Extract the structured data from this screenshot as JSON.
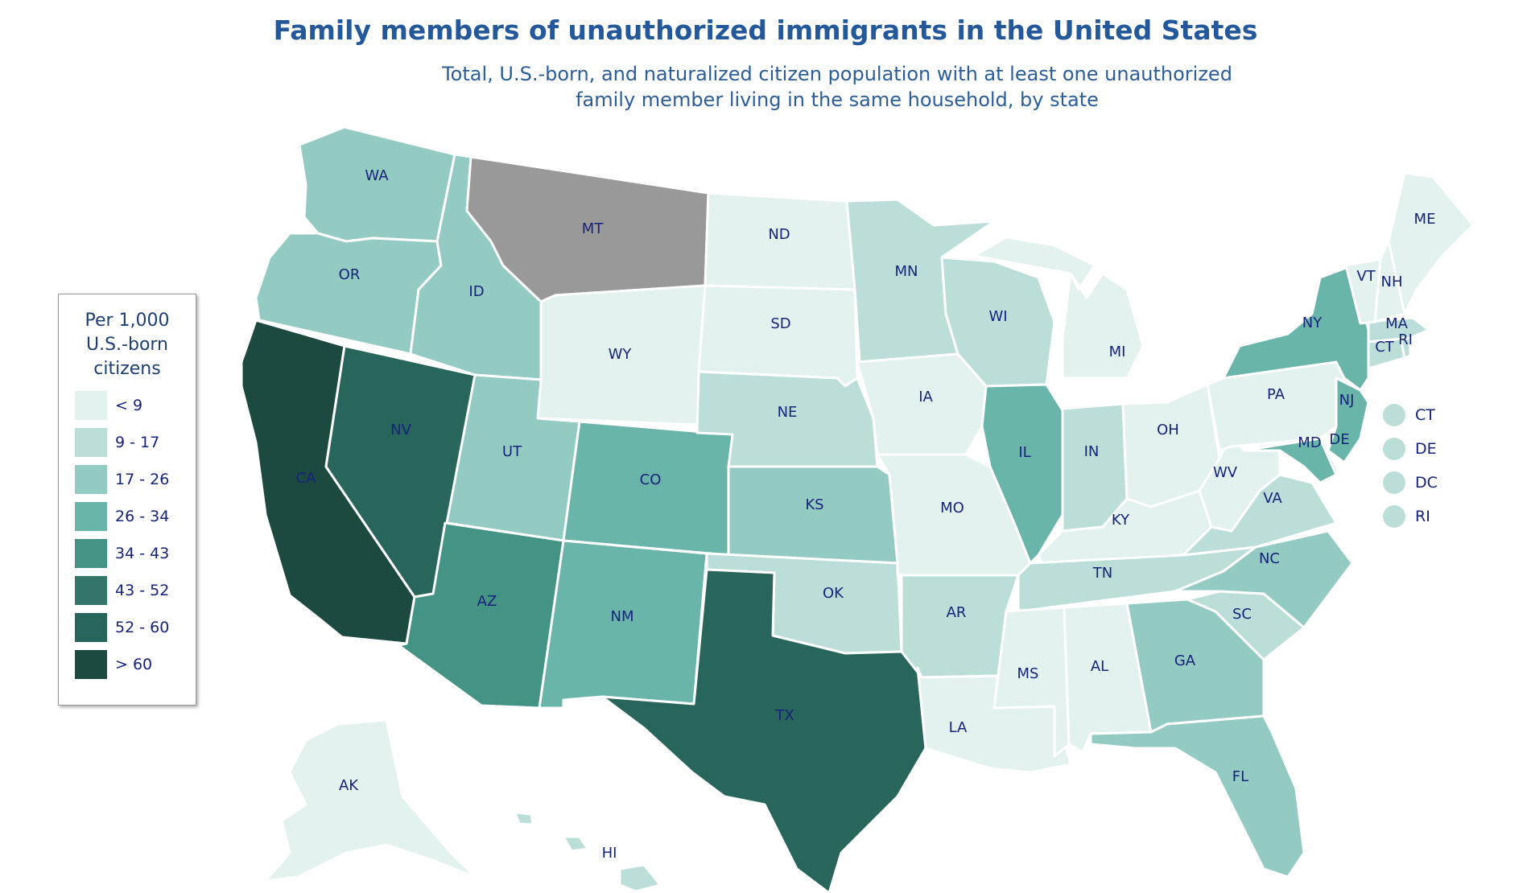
{
  "title": "Family members of unauthorized immigrants in the United States",
  "subtitle_line1": "Total, U.S.-born, and naturalized citizen population with at least one unauthorized",
  "subtitle_line2": "family member living in the same household, by state",
  "legend": {
    "title_line1": "Per 1,000",
    "title_line2": "U.S.-born",
    "title_line3": "citizens",
    "bins": [
      {
        "label": "< 9",
        "color": "#e3f1ef"
      },
      {
        "label": "9 - 17",
        "color": "#bcded9"
      },
      {
        "label": "17 - 26",
        "color": "#93cbc3"
      },
      {
        "label": "26 - 34",
        "color": "#6ab5aa"
      },
      {
        "label": "34 - 43",
        "color": "#439485"
      },
      {
        "label": "43 - 52",
        "color": "#347768"
      },
      {
        "label": "52 - 60",
        "color": "#28655a"
      },
      {
        "label": "> 60",
        "color": "#1d4a40"
      }
    ]
  },
  "no_data_color": "#999999",
  "small_states": [
    {
      "label": "CT",
      "color": "#bcded9"
    },
    {
      "label": "DE",
      "color": "#bcded9"
    },
    {
      "label": "DC",
      "color": "#bcded9"
    },
    {
      "label": "RI",
      "color": "#bcded9"
    }
  ],
  "states": [
    {
      "id": "WA",
      "label": "WA",
      "color": "#93cbc3"
    },
    {
      "id": "OR",
      "label": "OR",
      "color": "#93cbc3"
    },
    {
      "id": "CA",
      "label": "CA",
      "color": "#1d4a40"
    },
    {
      "id": "NV",
      "label": "NV",
      "color": "#28655a"
    },
    {
      "id": "ID",
      "label": "ID",
      "color": "#93cbc3"
    },
    {
      "id": "MT",
      "label": "MT",
      "color": "#999999"
    },
    {
      "id": "WY",
      "label": "WY",
      "color": "#e3f1ef"
    },
    {
      "id": "UT",
      "label": "UT",
      "color": "#93cbc3"
    },
    {
      "id": "AZ",
      "label": "AZ",
      "color": "#439485"
    },
    {
      "id": "CO",
      "label": "CO",
      "color": "#6ab5aa"
    },
    {
      "id": "NM",
      "label": "NM",
      "color": "#6ab5aa"
    },
    {
      "id": "ND",
      "label": "ND",
      "color": "#e3f1ef"
    },
    {
      "id": "SD",
      "label": "SD",
      "color": "#e3f1ef"
    },
    {
      "id": "NE",
      "label": "NE",
      "color": "#bcded9"
    },
    {
      "id": "KS",
      "label": "KS",
      "color": "#93cbc3"
    },
    {
      "id": "OK",
      "label": "OK",
      "color": "#bcded9"
    },
    {
      "id": "TX",
      "label": "TX",
      "color": "#28655a"
    },
    {
      "id": "MN",
      "label": "MN",
      "color": "#bcded9"
    },
    {
      "id": "IA",
      "label": "IA",
      "color": "#e3f1ef"
    },
    {
      "id": "MO",
      "label": "MO",
      "color": "#e3f1ef"
    },
    {
      "id": "AR",
      "label": "AR",
      "color": "#bcded9"
    },
    {
      "id": "LA",
      "label": "LA",
      "color": "#e3f1ef"
    },
    {
      "id": "WI",
      "label": "WI",
      "color": "#bcded9"
    },
    {
      "id": "IL",
      "label": "IL",
      "color": "#6ab5aa"
    },
    {
      "id": "MI",
      "label": "MI",
      "color": "#e3f1ef"
    },
    {
      "id": "IN",
      "label": "IN",
      "color": "#bcded9"
    },
    {
      "id": "OH",
      "label": "OH",
      "color": "#e3f1ef"
    },
    {
      "id": "KY",
      "label": "KY",
      "color": "#e3f1ef"
    },
    {
      "id": "TN",
      "label": "TN",
      "color": "#bcded9"
    },
    {
      "id": "MS",
      "label": "MS",
      "color": "#e3f1ef"
    },
    {
      "id": "AL",
      "label": "AL",
      "color": "#e3f1ef"
    },
    {
      "id": "GA",
      "label": "GA",
      "color": "#93cbc3"
    },
    {
      "id": "FL",
      "label": "FL",
      "color": "#93cbc3"
    },
    {
      "id": "SC",
      "label": "SC",
      "color": "#bcded9"
    },
    {
      "id": "NC",
      "label": "NC",
      "color": "#93cbc3"
    },
    {
      "id": "VA",
      "label": "VA",
      "color": "#bcded9"
    },
    {
      "id": "WV",
      "label": "WV",
      "color": "#e3f1ef"
    },
    {
      "id": "PA",
      "label": "PA",
      "color": "#e3f1ef"
    },
    {
      "id": "NY",
      "label": "NY",
      "color": "#6ab5aa"
    },
    {
      "id": "NJ",
      "label": "NJ",
      "color": "#6ab5aa"
    },
    {
      "id": "MD",
      "label": "MD",
      "color": "#6ab5aa"
    },
    {
      "id": "DE",
      "label": "DE",
      "color": "#bcded9"
    },
    {
      "id": "CT",
      "label": "CT",
      "color": "#bcded9"
    },
    {
      "id": "RI",
      "label": "RI",
      "color": "#bcded9"
    },
    {
      "id": "MA",
      "label": "MA",
      "color": "#bcded9"
    },
    {
      "id": "VT",
      "label": "VT",
      "color": "#e3f1ef"
    },
    {
      "id": "NH",
      "label": "NH",
      "color": "#e3f1ef"
    },
    {
      "id": "ME",
      "label": "ME",
      "color": "#e3f1ef"
    },
    {
      "id": "AK",
      "label": "AK",
      "color": "#e3f1ef"
    },
    {
      "id": "HI",
      "label": "HI",
      "color": "#bcded9"
    }
  ]
}
